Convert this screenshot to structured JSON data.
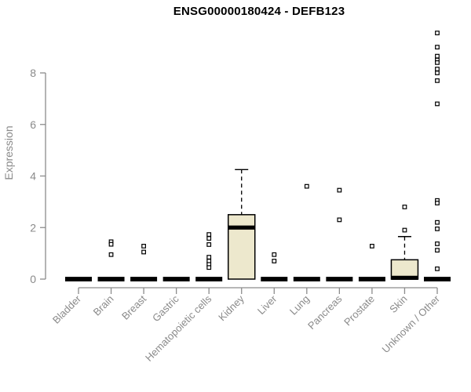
{
  "title": "ENSG00000180424 - DEFB123",
  "y_axis_label": "Expression",
  "chart_data": {
    "type": "boxplot",
    "title": "ENSG00000180424 - DEFB123",
    "xlabel": "",
    "ylabel": "Expression",
    "ylim": [
      0,
      9.8
    ],
    "yticks": [
      0,
      2,
      4,
      6,
      8
    ],
    "grid": false,
    "legend": false,
    "categories": [
      "Bladder",
      "Brain",
      "Breast",
      "Gastric",
      "Hematopoietic cells",
      "Kidney",
      "Liver",
      "Lung",
      "Pancreas",
      "Prostate",
      "Skin",
      "Unknown / Other"
    ],
    "series": [
      {
        "name": "Bladder",
        "q1": 0,
        "median": 0,
        "q3": 0,
        "whisker_low": 0,
        "whisker_high": 0,
        "outliers": []
      },
      {
        "name": "Brain",
        "q1": 0,
        "median": 0,
        "q3": 0,
        "whisker_low": 0,
        "whisker_high": 0,
        "outliers": [
          1.45,
          1.35,
          0.95
        ]
      },
      {
        "name": "Breast",
        "q1": 0,
        "median": 0,
        "q3": 0,
        "whisker_low": 0,
        "whisker_high": 0,
        "outliers": [
          1.28,
          1.05
        ]
      },
      {
        "name": "Gastric",
        "q1": 0,
        "median": 0,
        "q3": 0,
        "whisker_low": 0,
        "whisker_high": 0,
        "outliers": []
      },
      {
        "name": "Hematopoietic cells",
        "q1": 0,
        "median": 0,
        "q3": 0,
        "whisker_low": 0,
        "whisker_high": 0,
        "outliers": [
          1.73,
          1.58,
          1.34,
          0.85,
          0.7,
          0.57,
          0.45
        ]
      },
      {
        "name": "Kidney",
        "q1": 0,
        "median": 2.0,
        "q3": 2.5,
        "whisker_low": 0,
        "whisker_high": 4.25,
        "outliers": []
      },
      {
        "name": "Liver",
        "q1": 0,
        "median": 0,
        "q3": 0,
        "whisker_low": 0,
        "whisker_high": 0,
        "outliers": [
          0.95,
          0.7
        ]
      },
      {
        "name": "Lung",
        "q1": 0,
        "median": 0,
        "q3": 0,
        "whisker_low": 0,
        "whisker_high": 0,
        "outliers": [
          3.6
        ]
      },
      {
        "name": "Pancreas",
        "q1": 0,
        "median": 0,
        "q3": 0,
        "whisker_low": 0,
        "whisker_high": 0,
        "outliers": [
          3.45,
          2.3
        ]
      },
      {
        "name": "Prostate",
        "q1": 0,
        "median": 0,
        "q3": 0,
        "whisker_low": 0,
        "whisker_high": 0,
        "outliers": [
          1.28
        ]
      },
      {
        "name": "Skin",
        "q1": 0,
        "median": 0.05,
        "q3": 0.75,
        "whisker_low": 0,
        "whisker_high": 1.65,
        "outliers": [
          2.8,
          1.9
        ]
      },
      {
        "name": "Unknown / Other",
        "q1": 0,
        "median": 0,
        "q3": 0,
        "whisker_low": 0,
        "whisker_high": 0,
        "outliers": [
          9.55,
          9.0,
          8.65,
          8.5,
          8.4,
          8.15,
          8.0,
          7.7,
          6.8,
          3.05,
          2.95,
          2.2,
          1.95,
          1.37,
          1.12,
          0.4
        ]
      }
    ]
  },
  "colors": {
    "box_fill": "#ede8cd",
    "box_stroke": "#000000",
    "median": "#000000",
    "axis": "#8c8c8c",
    "tick_text": "#8a8a8a",
    "title_text": "#000000",
    "background": "#ffffff",
    "outlier_fill": "#ffffff"
  }
}
